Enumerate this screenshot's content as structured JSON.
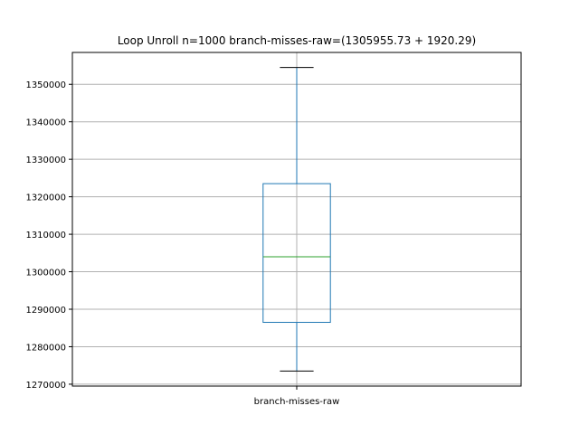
{
  "chart_data": {
    "type": "box",
    "title": "Loop Unroll n=1000  branch-misses-raw=(1305955.73 + 1920.29)",
    "xlabel": "",
    "ylabel": "",
    "categories": [
      "branch-misses-raw"
    ],
    "boxes": [
      {
        "name": "branch-misses-raw",
        "whisker_low": 1273500,
        "q1": 1286500,
        "median": 1304000,
        "q3": 1323500,
        "whisker_high": 1354500
      }
    ],
    "ylim": [
      1269500,
      1358500
    ],
    "yticks": [
      1270000,
      1280000,
      1290000,
      1300000,
      1310000,
      1320000,
      1330000,
      1340000,
      1350000
    ],
    "ytick_labels": [
      "1270000",
      "1280000",
      "1290000",
      "1300000",
      "1310000",
      "1320000",
      "1330000",
      "1340000",
      "1350000"
    ],
    "grid": true,
    "colors": {
      "box": "#1f77b4",
      "median": "#2ca02c",
      "whisker": "#1f77b4",
      "cap": "#000000",
      "grid": "#b0b0b0"
    }
  }
}
